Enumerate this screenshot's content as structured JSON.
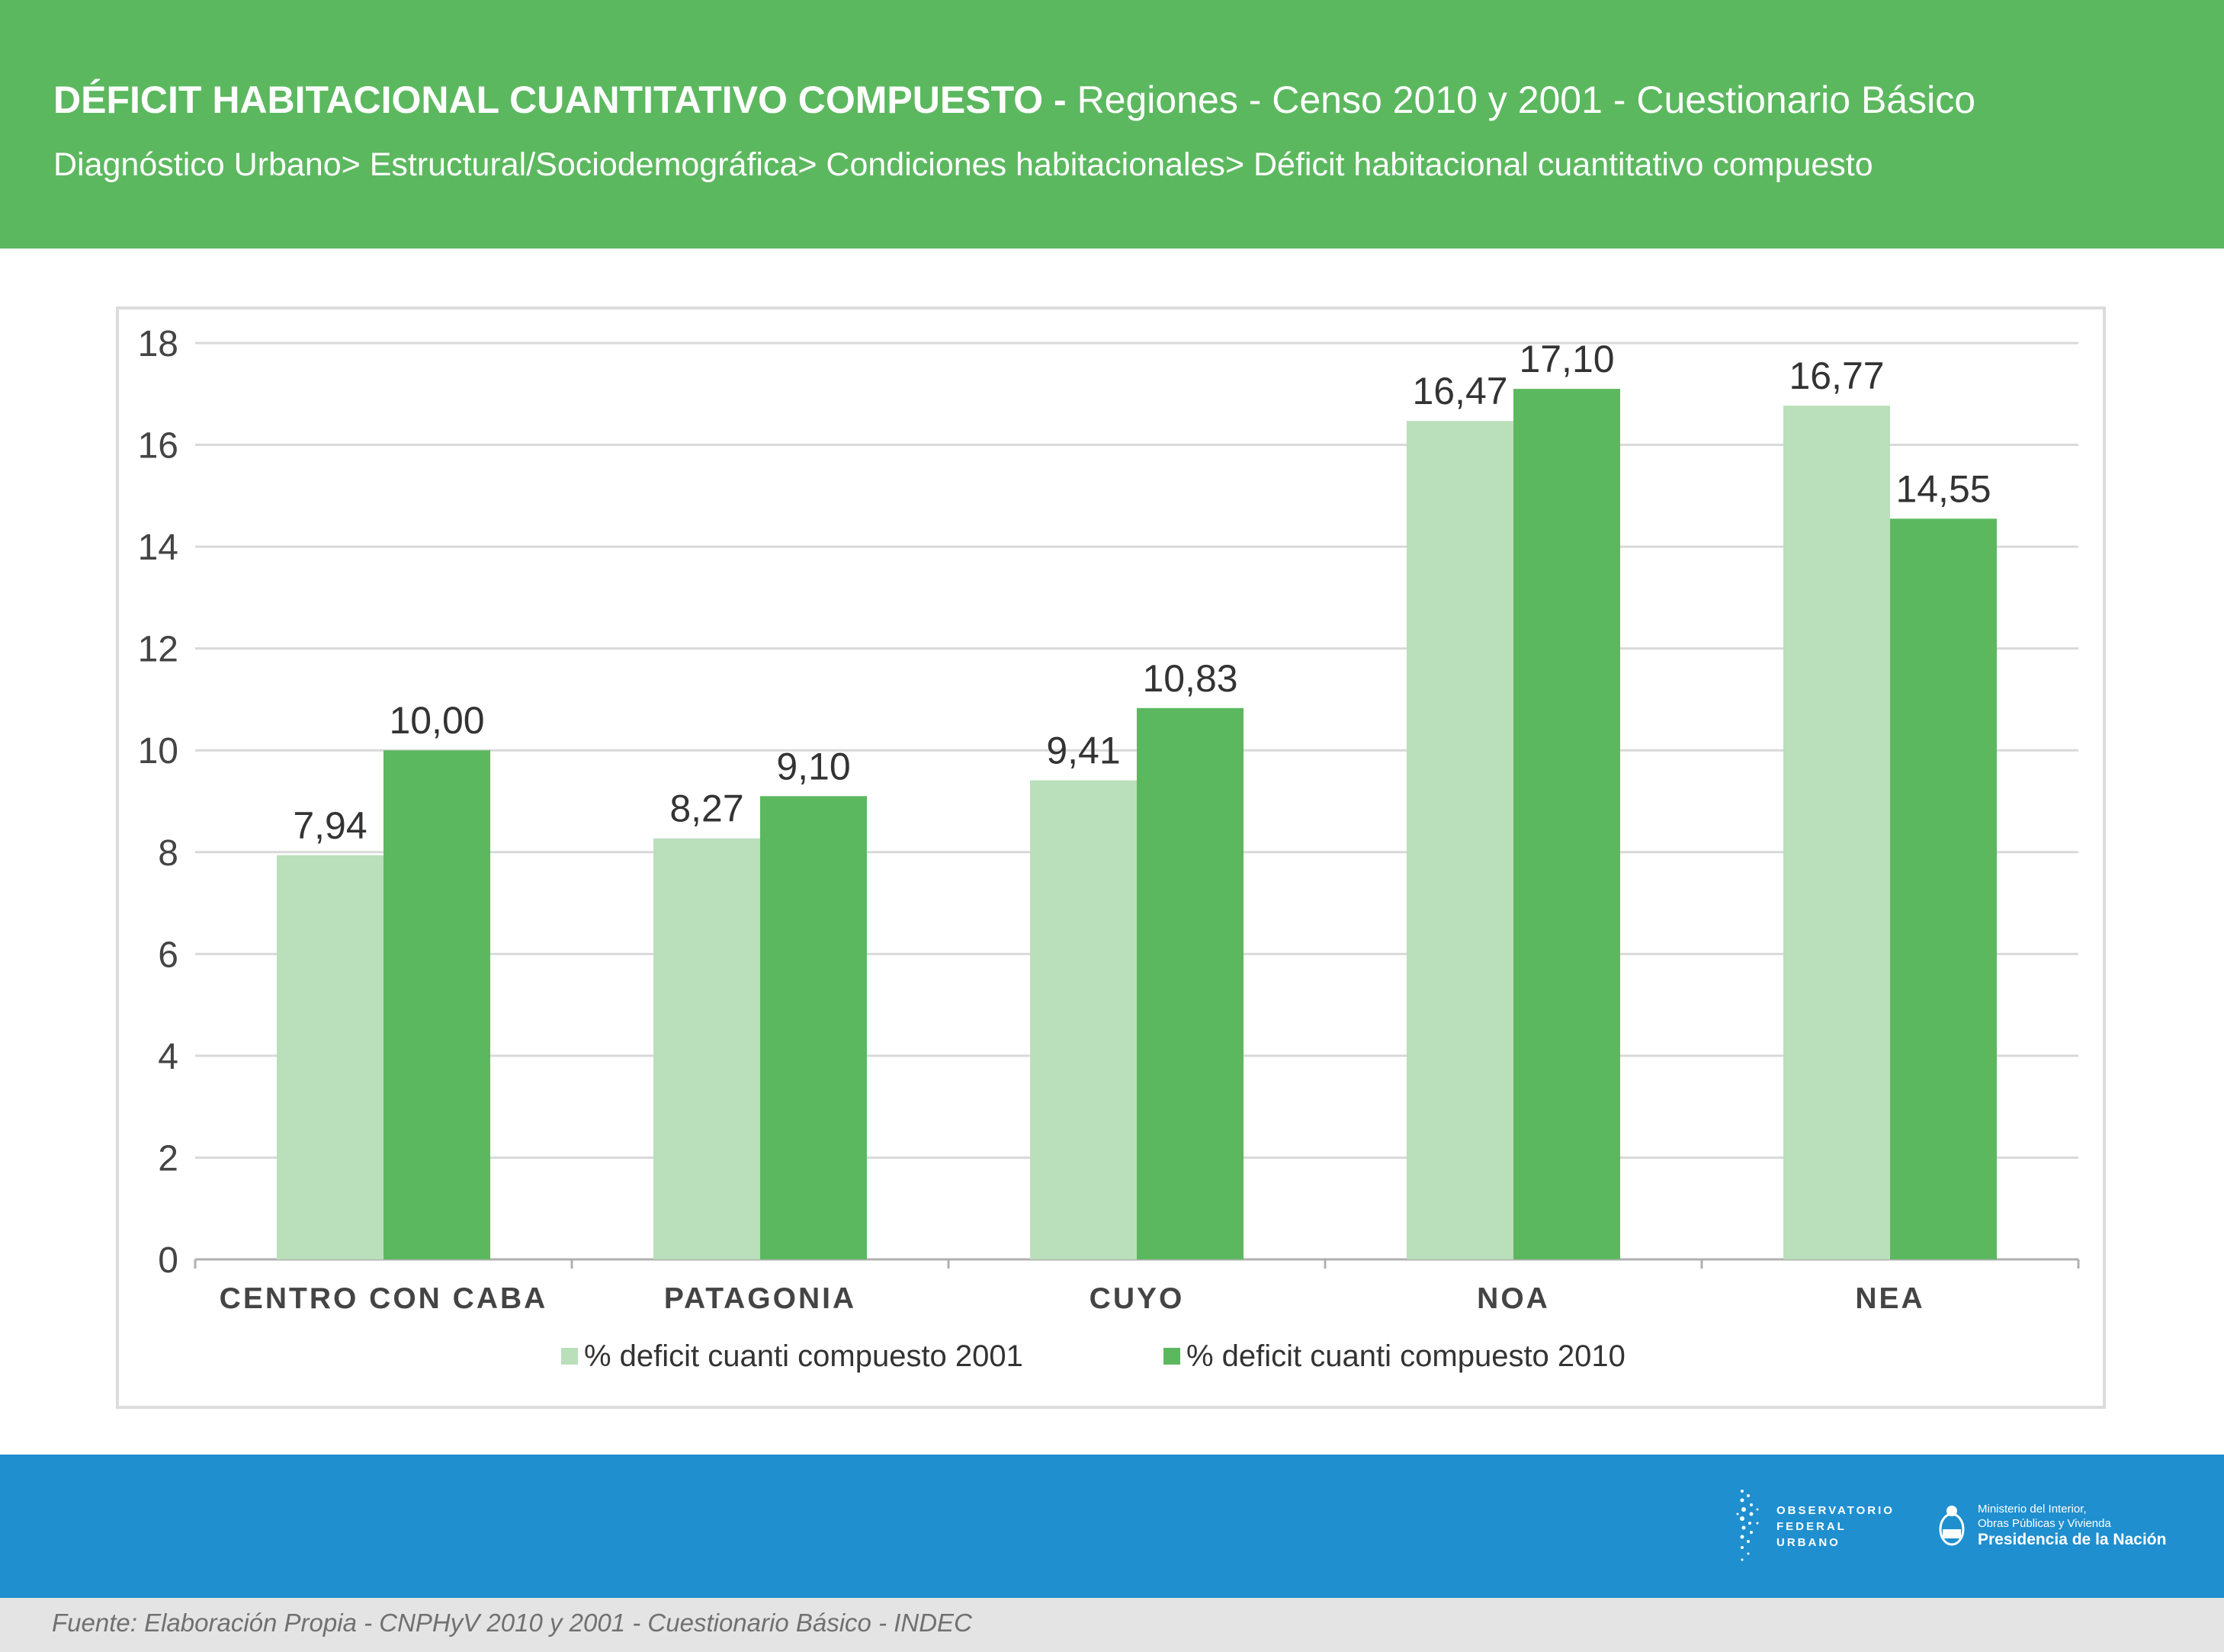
{
  "header": {
    "title_bold": "DÉFICIT HABITACIONAL CUANTITATIVO COMPUESTO -",
    "title_rest": " Regiones - Censo 2010 y 2001 - Cuestionario Básico",
    "breadcrumb": "Diagnóstico Urbano> Estructural/Sociodemográfica> Condiciones habitacionales> Déficit habitacional cuantitativo compuesto"
  },
  "colors": {
    "header": "#5cb85f",
    "series_2001": "#badfbb",
    "series_2010": "#5cb85f",
    "footer": "#1f8fcf",
    "source_band": "#e4e4e4"
  },
  "chart_data": {
    "type": "bar",
    "title": "",
    "xlabel": "",
    "ylabel": "",
    "categories": [
      "CENTRO CON CABA",
      "PATAGONIA",
      "CUYO",
      "NOA",
      "NEA"
    ],
    "series": [
      {
        "name": "% deficit cuanti compuesto 2001",
        "color": "#badfbb",
        "values": [
          7.94,
          8.27,
          9.41,
          16.47,
          16.77
        ],
        "labels": [
          "7,94",
          "8,27",
          "9,41",
          "16,47",
          "16,77"
        ]
      },
      {
        "name": "% deficit cuanti compuesto 2010",
        "color": "#5cb85f",
        "values": [
          10.0,
          9.1,
          10.83,
          17.1,
          14.55
        ],
        "labels": [
          "10,00",
          "9,10",
          "10,83",
          "17,10",
          "14,55"
        ]
      }
    ],
    "ylim": [
      0,
      18
    ],
    "yticks": [
      0,
      2,
      4,
      6,
      8,
      10,
      12,
      14,
      16,
      18
    ],
    "grid": true,
    "legend_position": "bottom"
  },
  "footer": {
    "ofu_logo_text": [
      "OBSERVATORIO",
      "FEDERAL",
      "URBANO"
    ],
    "ministry_line1": "Ministerio del Interior,",
    "ministry_line2": "Obras Públicas y Vivienda",
    "ministry_line3": "Presidencia de la Nación",
    "source": "Fuente: Elaboración Propia - CNPHyV 2010 y 2001 - Cuestionario Básico - INDEC"
  }
}
